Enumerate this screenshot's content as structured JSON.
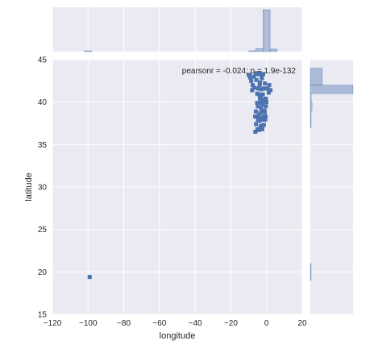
{
  "chart_data": {
    "type": "scatter",
    "subtype": "jointplot",
    "xlabel": "longitude",
    "ylabel": "latitude",
    "annotation": "pearsonr = -0.024; p = 1.9e-132",
    "xlim": [
      -120,
      20
    ],
    "ylim": [
      15,
      45
    ],
    "xticks": [
      -120,
      -100,
      -80,
      -60,
      -40,
      -20,
      0,
      20
    ],
    "yticks": [
      15,
      20,
      25,
      30,
      35,
      40,
      45
    ],
    "grid": true,
    "colors": {
      "background": "#eaeaf2",
      "grid": "#ffffff",
      "marker": "#4c72b0"
    },
    "points": [
      [
        -99.1,
        19.4
      ],
      [
        -10.0,
        43.2
      ],
      [
        -9.2,
        42.9
      ],
      [
        -8.6,
        42.5
      ],
      [
        -7.8,
        42.0
      ],
      [
        -8.1,
        41.4
      ],
      [
        -6.9,
        41.7
      ],
      [
        -5.6,
        43.4
      ],
      [
        -4.8,
        43.3
      ],
      [
        -3.8,
        43.4
      ],
      [
        -2.9,
        43.2
      ],
      [
        -1.9,
        43.3
      ],
      [
        -2.6,
        42.8
      ],
      [
        -3.7,
        42.3
      ],
      [
        -4.7,
        41.6
      ],
      [
        -5.2,
        41.0
      ],
      [
        -4.2,
        40.9
      ],
      [
        -3.7,
        40.4
      ],
      [
        -3.2,
        40.6
      ],
      [
        -2.4,
        40.1
      ],
      [
        -1.6,
        41.6
      ],
      [
        -0.9,
        41.6
      ],
      [
        0.6,
        41.6
      ],
      [
        2.2,
        41.4
      ],
      [
        1.2,
        41.1
      ],
      [
        -0.4,
        40.4
      ],
      [
        -0.4,
        39.5
      ],
      [
        -1.2,
        39.0
      ],
      [
        -0.5,
        38.3
      ],
      [
        -1.1,
        37.9
      ],
      [
        -2.5,
        38.9
      ],
      [
        -3.6,
        38.7
      ],
      [
        -4.8,
        39.5
      ],
      [
        -5.3,
        39.9
      ],
      [
        -4.0,
        38.1
      ],
      [
        -3.8,
        37.8
      ],
      [
        -4.8,
        37.9
      ],
      [
        -5.9,
        37.4
      ],
      [
        -4.4,
        36.7
      ],
      [
        -3.2,
        37.2
      ],
      [
        -2.4,
        36.8
      ],
      [
        -6.3,
        36.5
      ],
      [
        -1.5,
        37.3
      ],
      [
        -1.0,
        38.8
      ],
      [
        -2.1,
        40.9
      ],
      [
        -3.9,
        42.0
      ],
      [
        -0.9,
        42.2
      ],
      [
        1.5,
        42.0
      ],
      [
        -5.7,
        42.6
      ],
      [
        -7.1,
        43.0
      ],
      [
        -6.0,
        43.3
      ],
      [
        -4.1,
        39.9
      ],
      [
        -3.1,
        39.3
      ],
      [
        -2.0,
        39.7
      ],
      [
        -4.5,
        38.4
      ],
      [
        -2.9,
        38.0
      ],
      [
        -3.5,
        36.9
      ],
      [
        -5.1,
        36.8
      ],
      [
        -6.4,
        38.3
      ],
      [
        -6.0,
        38.9
      ],
      [
        -3.0,
        41.5
      ],
      [
        -1.3,
        40.3
      ],
      [
        -0.1,
        40.0
      ],
      [
        -0.7,
        38.0
      ],
      [
        -1.8,
        38.3
      ]
    ],
    "x_marginal": {
      "type": "histogram",
      "bin_edges": [
        -102,
        -98,
        -94,
        -90,
        -86,
        -82,
        -78,
        -74,
        -70,
        -66,
        -62,
        -58,
        -54,
        -50,
        -46,
        -42,
        -38,
        -34,
        -30,
        -26,
        -22,
        -18,
        -14,
        -10,
        -6,
        -2,
        2,
        6
      ],
      "counts": [
        1,
        0,
        0,
        0,
        0,
        0,
        0,
        0,
        0,
        0,
        0,
        0,
        0,
        0,
        0,
        0,
        0,
        0,
        0,
        0,
        0,
        0,
        0,
        2,
        7,
        100,
        6
      ]
    },
    "y_marginal": {
      "type": "histogram",
      "bin_edges": [
        15,
        17,
        19,
        21,
        23,
        25,
        27,
        29,
        31,
        33,
        35,
        37,
        39,
        40,
        41,
        42,
        44
      ],
      "counts": [
        0,
        0,
        1,
        0,
        0,
        0,
        0,
        0,
        0,
        0,
        0,
        1,
        4,
        2,
        100,
        28
      ]
    }
  }
}
